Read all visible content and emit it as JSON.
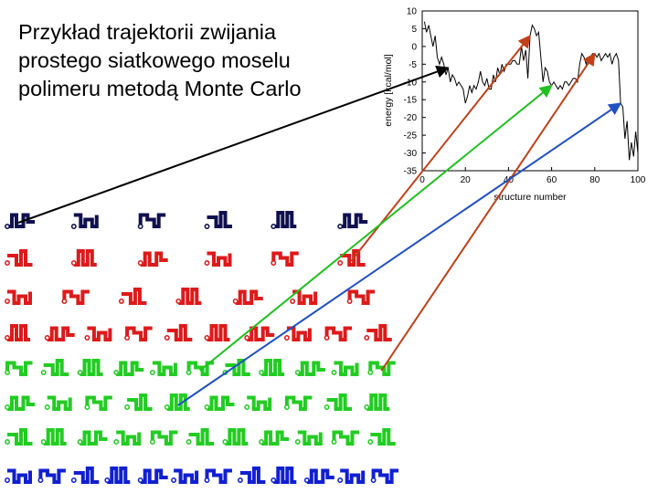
{
  "slide": {
    "title_lines": [
      "Przykład trajektorii zwijania",
      "prostego siatkowego moselu",
      "polimeru metodą Monte Carlo"
    ]
  },
  "colors": {
    "navy": "#101050",
    "red": "#dd1a1a",
    "green": "#22cc22",
    "blue": "#1020d0",
    "arrow_brown": "#c0401a",
    "arrow_green": "#20c020",
    "arrow_blue": "#2050c0",
    "arrow_black": "#000000",
    "energy_line": "#000000"
  },
  "chart_data": {
    "type": "line",
    "title": "",
    "xlabel": "structure number",
    "ylabel": "energy [kcal/mol]",
    "xlim": [
      0,
      100
    ],
    "ylim": [
      -35,
      10
    ],
    "x_ticks": [
      "0",
      "20",
      "40",
      "60",
      "80",
      "100"
    ],
    "y_ticks": [
      "10",
      "5",
      "0",
      "-5",
      "-10",
      "-15",
      "-20",
      "-25",
      "-30",
      "-35"
    ],
    "grid": false,
    "series": [
      {
        "name": "",
        "x": [
          1,
          2,
          3,
          4,
          5,
          6,
          7,
          8,
          9,
          10,
          11,
          12,
          13,
          14,
          15,
          16,
          17,
          18,
          19,
          20,
          21,
          22,
          23,
          24,
          25,
          26,
          27,
          28,
          29,
          30,
          31,
          32,
          33,
          34,
          35,
          36,
          37,
          38,
          39,
          40,
          41,
          42,
          43,
          44,
          45,
          46,
          47,
          48,
          49,
          50,
          51,
          52,
          53,
          54,
          55,
          56,
          57,
          58,
          59,
          60,
          61,
          62,
          63,
          64,
          65,
          66,
          67,
          68,
          69,
          70,
          71,
          72,
          73,
          74,
          75,
          76,
          77,
          78,
          79,
          80,
          81,
          82,
          83,
          84,
          85,
          86,
          87,
          88,
          89,
          90,
          91,
          92,
          93,
          94,
          95,
          96,
          97,
          98,
          99,
          100
        ],
        "values": [
          7,
          4,
          6,
          3,
          0,
          3,
          -3,
          -5,
          -3,
          -5,
          -8,
          -6,
          -10,
          -8,
          -9,
          -11,
          -10,
          -11,
          -12,
          -16,
          -14,
          -11,
          -13,
          -11,
          -12,
          -10,
          -7,
          -10,
          -11,
          -9,
          -12,
          -12,
          -8,
          -10,
          -6,
          -8,
          -5,
          -7,
          -5,
          -5,
          -5,
          -4,
          -4,
          -5,
          -5,
          0,
          -4,
          -1,
          -9,
          3,
          6,
          5,
          3,
          4,
          -3,
          -10,
          -6,
          -7,
          -10,
          -11,
          -10,
          -11,
          -12,
          -11,
          -12,
          -10,
          -10,
          -11,
          -10,
          -9,
          -9,
          -10,
          -5,
          -2,
          -3,
          -5,
          -3,
          -3,
          -2,
          -2,
          -3,
          -2,
          -4,
          -3,
          -2,
          -3,
          -2,
          -5,
          -3,
          -2,
          -4,
          -16,
          -17,
          -26,
          -21,
          -32,
          -27,
          -31,
          -24,
          -30
        ]
      }
    ]
  },
  "conformation_grid": {
    "rows": [
      {
        "color": "navy",
        "count": 6
      },
      {
        "color": "red",
        "count": 6
      },
      {
        "color": "red",
        "count": 7
      },
      {
        "color": "red",
        "count": 10
      },
      {
        "color": "green",
        "count": 11
      },
      {
        "color": "green",
        "count": 10
      },
      {
        "color": "green",
        "count": 11
      },
      {
        "color": "blue",
        "count": 12
      }
    ]
  },
  "arrows": [
    {
      "from_struct": 1,
      "to_struct": 12,
      "color": "arrow_black"
    },
    {
      "from_struct": 12,
      "to_struct": 50,
      "color": "arrow_brown"
    },
    {
      "from_struct": 35,
      "to_struct": 60,
      "color": "arrow_green"
    },
    {
      "from_struct": 40,
      "to_struct": 80,
      "color": "arrow_brown"
    },
    {
      "from_struct": 45,
      "to_struct": 92,
      "color": "arrow_blue"
    }
  ]
}
